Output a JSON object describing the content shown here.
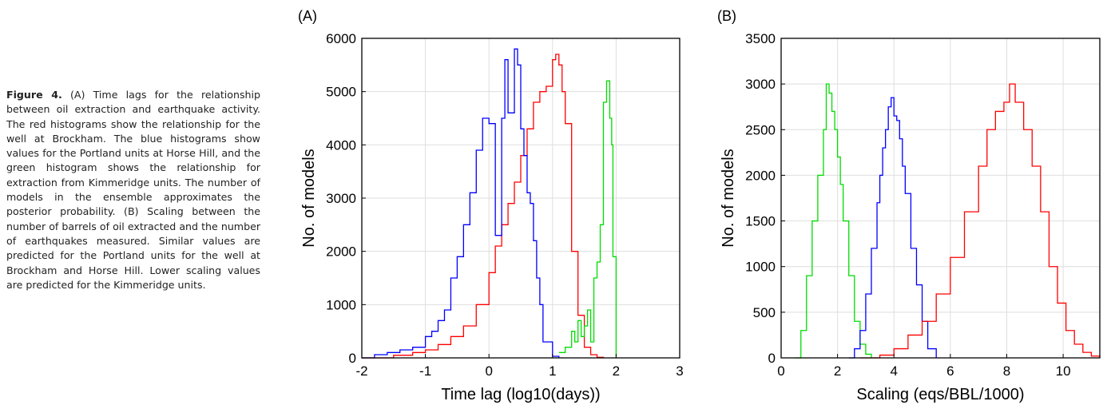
{
  "caption": {
    "label": "Figure 4.",
    "text": "(A) Time lags for the relationship between oil extraction and earthquake activity. The red histograms show the relationship for the well at Brockham. The blue histograms show values for the Portland units at Horse Hill, and the green histogram shows the relationship for extraction from Kimmeridge units. The number of models in the ensemble approximates the posterior probability. (B) Scaling between the number of barrels of oil extracted and the number of earthquakes measured. Similar values are predicted for the Portland units for the well at Brockham and Horse Hill. Lower scaling values are predicted for the Kimmeridge units."
  },
  "colors": {
    "red": "#ff0000",
    "blue": "#0000ff",
    "green": "#00dd00",
    "grid": "#dedede"
  },
  "chart_data": [
    {
      "panel": "(A)",
      "type": "line",
      "style": "stairs histogram",
      "xlabel": "Time lag (log10(days))",
      "ylabel": "No. of models",
      "xlim": [
        -2,
        3
      ],
      "ylim": [
        0,
        6000
      ],
      "xticks": [
        -2,
        -1,
        0,
        1,
        2,
        3
      ],
      "yticks": [
        0,
        1000,
        2000,
        3000,
        4000,
        5000,
        6000
      ],
      "grid": true,
      "series": [
        {
          "color": "red",
          "x": [
            -2,
            -1.5,
            -1.2,
            -1,
            -0.8,
            -0.6,
            -0.4,
            -0.2,
            0,
            0.1,
            0.2,
            0.3,
            0.4,
            0.5,
            0.6,
            0.7,
            0.8,
            0.9,
            1,
            1.05,
            1.1,
            1.15,
            1.2,
            1.3,
            1.4,
            1.5,
            1.6,
            1.7,
            1.8
          ],
          "values": [
            0,
            50,
            100,
            150,
            250,
            400,
            600,
            1000,
            1600,
            2100,
            2500,
            2900,
            3300,
            3800,
            4300,
            4800,
            5000,
            5100,
            5600,
            5700,
            5500,
            5000,
            4400,
            2000,
            800,
            200,
            60,
            10,
            0
          ]
        },
        {
          "color": "blue",
          "x": [
            -2,
            -1.8,
            -1.6,
            -1.4,
            -1.2,
            -1,
            -0.9,
            -0.8,
            -0.7,
            -0.6,
            -0.5,
            -0.4,
            -0.3,
            -0.2,
            -0.1,
            0,
            0.1,
            0.2,
            0.25,
            0.3,
            0.4,
            0.45,
            0.5,
            0.55,
            0.6,
            0.65,
            0.7,
            0.75,
            0.8,
            0.85,
            1,
            1.1
          ],
          "values": [
            0,
            60,
            100,
            150,
            200,
            400,
            500,
            700,
            900,
            1500,
            1900,
            2500,
            3100,
            3900,
            4500,
            4400,
            2300,
            4500,
            5600,
            4600,
            5800,
            5500,
            4300,
            3800,
            3100,
            2900,
            2200,
            1500,
            1000,
            300,
            30,
            0
          ]
        },
        {
          "color": "green",
          "x": [
            1.1,
            1.2,
            1.3,
            1.35,
            1.4,
            1.45,
            1.5,
            1.55,
            1.6,
            1.65,
            1.7,
            1.75,
            1.8,
            1.85,
            1.9,
            1.93,
            1.95,
            2
          ],
          "values": [
            100,
            200,
            500,
            300,
            700,
            400,
            600,
            900,
            300,
            1500,
            1800,
            2500,
            4800,
            5200,
            4500,
            4000,
            1900,
            0
          ]
        }
      ]
    },
    {
      "panel": "(B)",
      "type": "line",
      "style": "stairs histogram",
      "xlabel": "Scaling (eqs/BBL/1000)",
      "ylabel": "No. of models",
      "xlim": [
        0,
        11.3
      ],
      "ylim": [
        0,
        3500
      ],
      "xticks": [
        0,
        2,
        4,
        6,
        8,
        10
      ],
      "yticks": [
        0,
        500,
        1000,
        1500,
        2000,
        2500,
        3000,
        3500
      ],
      "grid": true,
      "series": [
        {
          "color": "green",
          "x": [
            0.5,
            0.7,
            0.9,
            1.1,
            1.3,
            1.5,
            1.6,
            1.7,
            1.8,
            1.9,
            2.0,
            2.1,
            2.2,
            2.4,
            2.6,
            2.8,
            3.0,
            3.2
          ],
          "values": [
            0,
            300,
            900,
            1500,
            2000,
            2500,
            3000,
            2900,
            2700,
            2500,
            2200,
            1900,
            1500,
            900,
            400,
            150,
            40,
            0
          ]
        },
        {
          "color": "blue",
          "x": [
            2.4,
            2.6,
            2.8,
            3.0,
            3.2,
            3.4,
            3.5,
            3.6,
            3.7,
            3.8,
            3.9,
            4.0,
            4.1,
            4.2,
            4.3,
            4.4,
            4.6,
            4.8,
            5.0,
            5.2,
            5.5
          ],
          "values": [
            0,
            100,
            300,
            700,
            1200,
            1700,
            2000,
            2300,
            2500,
            2750,
            2850,
            2650,
            2600,
            2400,
            2100,
            1800,
            1200,
            800,
            400,
            100,
            0
          ]
        },
        {
          "color": "red",
          "x": [
            2.8,
            3.5,
            4.0,
            4.5,
            5.0,
            5.5,
            6.0,
            6.5,
            7.0,
            7.3,
            7.6,
            7.9,
            8.1,
            8.3,
            8.6,
            8.9,
            9.2,
            9.5,
            9.8,
            10.1,
            10.4,
            10.7,
            11.0,
            11.3
          ],
          "values": [
            0,
            30,
            100,
            250,
            400,
            700,
            1100,
            1600,
            2100,
            2500,
            2700,
            2800,
            3000,
            2800,
            2500,
            2100,
            1600,
            1000,
            600,
            300,
            150,
            60,
            20,
            0
          ]
        }
      ]
    }
  ]
}
